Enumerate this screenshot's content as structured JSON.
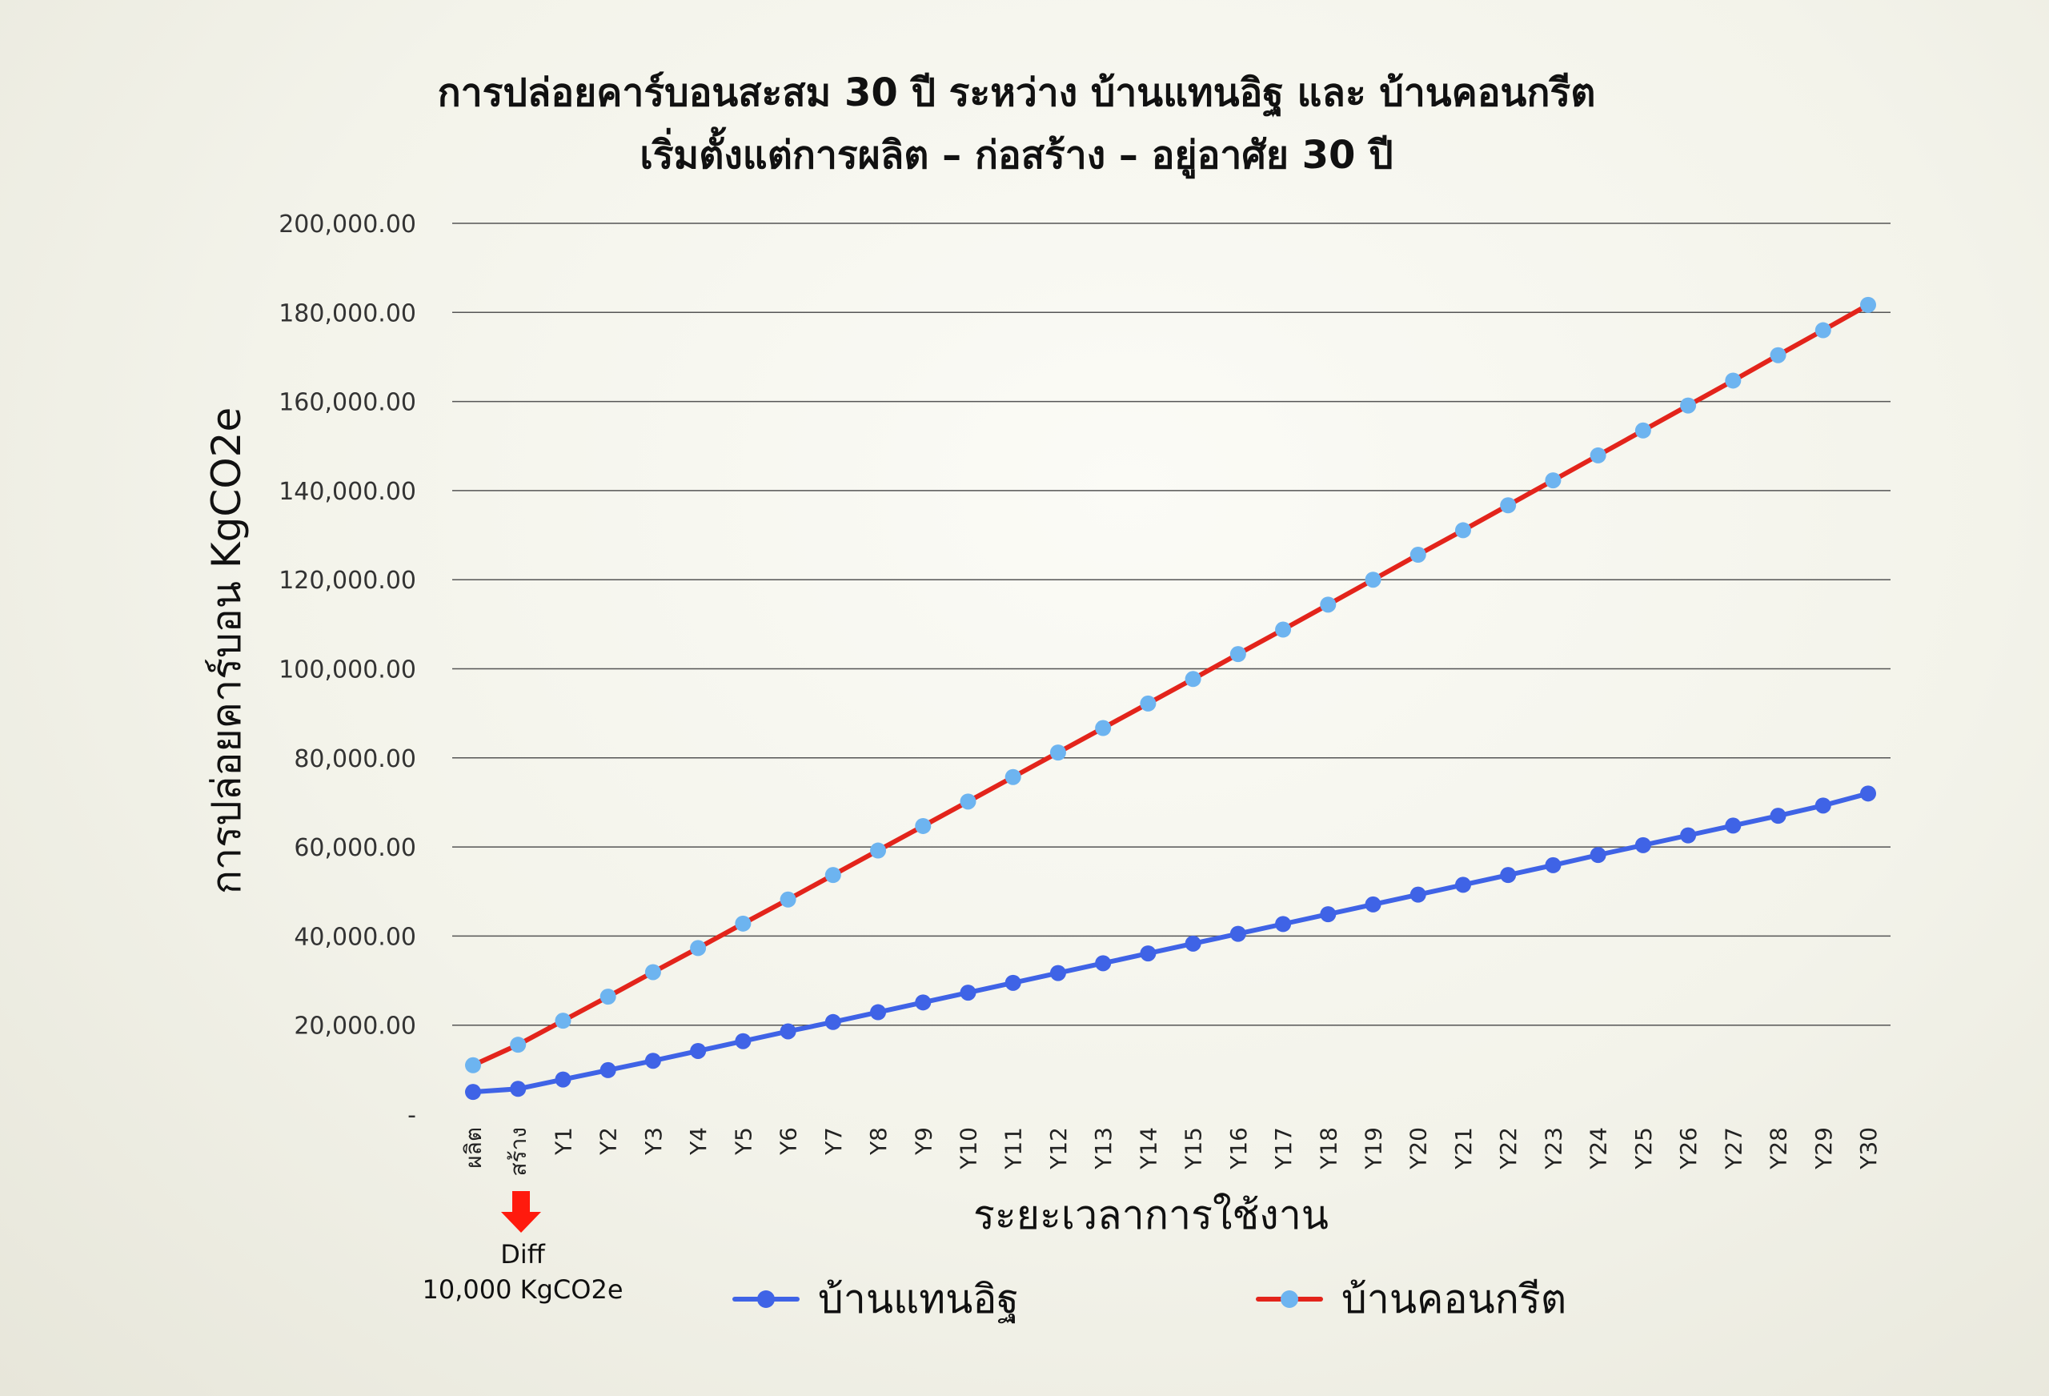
{
  "chart_data": {
    "type": "line",
    "title": "การปล่อยคาร์บอนสะสม 30 ปี ระหว่าง บ้านแทนอิฐ และ บ้านคอนกรีต",
    "subtitle": "เริ่มตั้งแต่การผลิต – ก่อสร้าง – อยู่อาศัย 30 ปี",
    "xlabel": "ระยะเวลาการใช้งาน",
    "ylabel": "การปล่อยคาร์บอน KgCO2e",
    "ylim": [
      0,
      200000
    ],
    "yticks": [
      "-",
      "20,000.00",
      "40,000.00",
      "60,000.00",
      "80,000.00",
      "100,000.00",
      "120,000.00",
      "140,000.00",
      "160,000.00",
      "180,000.00",
      "200,000.00"
    ],
    "grid": true,
    "legend_position": "bottom",
    "categories": [
      "ผลิต",
      "สร้าง",
      "Y1",
      "Y2",
      "Y3",
      "Y4",
      "Y5",
      "Y6",
      "Y7",
      "Y8",
      "Y9",
      "Y10",
      "Y11",
      "Y12",
      "Y13",
      "Y14",
      "Y15",
      "Y16",
      "Y17",
      "Y18",
      "Y19",
      "Y20",
      "Y21",
      "Y22",
      "Y23",
      "Y24",
      "Y25",
      "Y26",
      "Y27",
      "Y28",
      "Y29",
      "Y30"
    ],
    "series": [
      {
        "name": "บ้านแทนอิฐ",
        "line_color": "#3f63e6",
        "marker_color": "#3f63e6",
        "values": [
          5000,
          5700,
          7800,
          9900,
          12000,
          14200,
          16400,
          18600,
          20700,
          22900,
          25100,
          27300,
          29500,
          31700,
          33900,
          36100,
          38300,
          40500,
          42700,
          44900,
          47100,
          49300,
          51500,
          53700,
          55900,
          58200,
          60400,
          62600,
          64800,
          67000,
          69300,
          72000
        ]
      },
      {
        "name": "บ้านคอนกรีต",
        "line_color": "#e3241b",
        "marker_color": "#6db4f0",
        "values": [
          11000,
          15600,
          21000,
          26400,
          31900,
          37300,
          42800,
          48200,
          53700,
          59200,
          64700,
          70200,
          75700,
          81200,
          86700,
          92200,
          97700,
          103300,
          108800,
          114400,
          120000,
          125600,
          131100,
          136700,
          142300,
          147900,
          153500,
          159100,
          164700,
          170400,
          176000,
          181700
        ]
      }
    ],
    "annotation": {
      "line1": "Diff",
      "line2": "10,000 KgCO2e",
      "category": "สร้าง",
      "arrow_color": "#ff1a0d"
    }
  }
}
